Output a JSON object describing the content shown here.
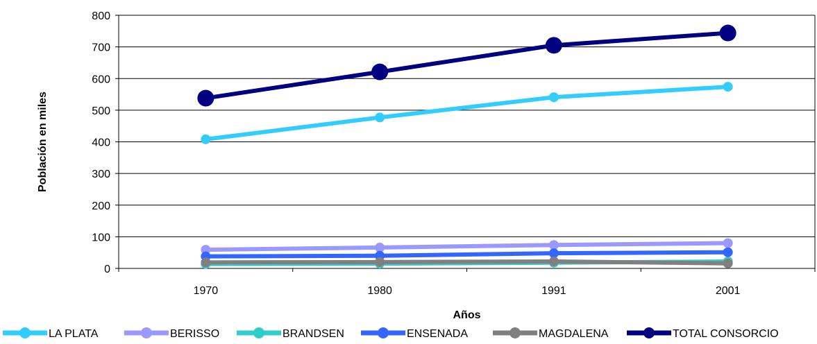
{
  "chart_data": {
    "type": "line",
    "title": "",
    "xlabel": "Años",
    "ylabel": "Población en miles",
    "categories": [
      "1970",
      "1980",
      "1991",
      "2001"
    ],
    "ylim": [
      0,
      800
    ],
    "yticks": [
      0,
      100,
      200,
      300,
      400,
      500,
      600,
      700,
      800
    ],
    "grid": "horizontal",
    "legend_position": "bottom",
    "series": [
      {
        "name": "LA PLATA",
        "color": "#33CCFF",
        "values": [
          408,
          477,
          541,
          574
        ]
      },
      {
        "name": "BERISSO",
        "color": "#9999FF",
        "values": [
          59,
          66,
          74,
          80
        ]
      },
      {
        "name": "BRANDSEN",
        "color": "#33CCCC",
        "values": [
          14,
          15,
          18,
          22
        ]
      },
      {
        "name": "ENSENADA",
        "color": "#3366FF",
        "values": [
          38,
          40,
          48,
          51
        ]
      },
      {
        "name": "MAGDALENA",
        "color": "#808080",
        "values": [
          19,
          20,
          22,
          16
        ]
      },
      {
        "name": "TOTAL CONSORCIO",
        "color": "#000080",
        "values": [
          538,
          621,
          705,
          744
        ]
      }
    ]
  }
}
